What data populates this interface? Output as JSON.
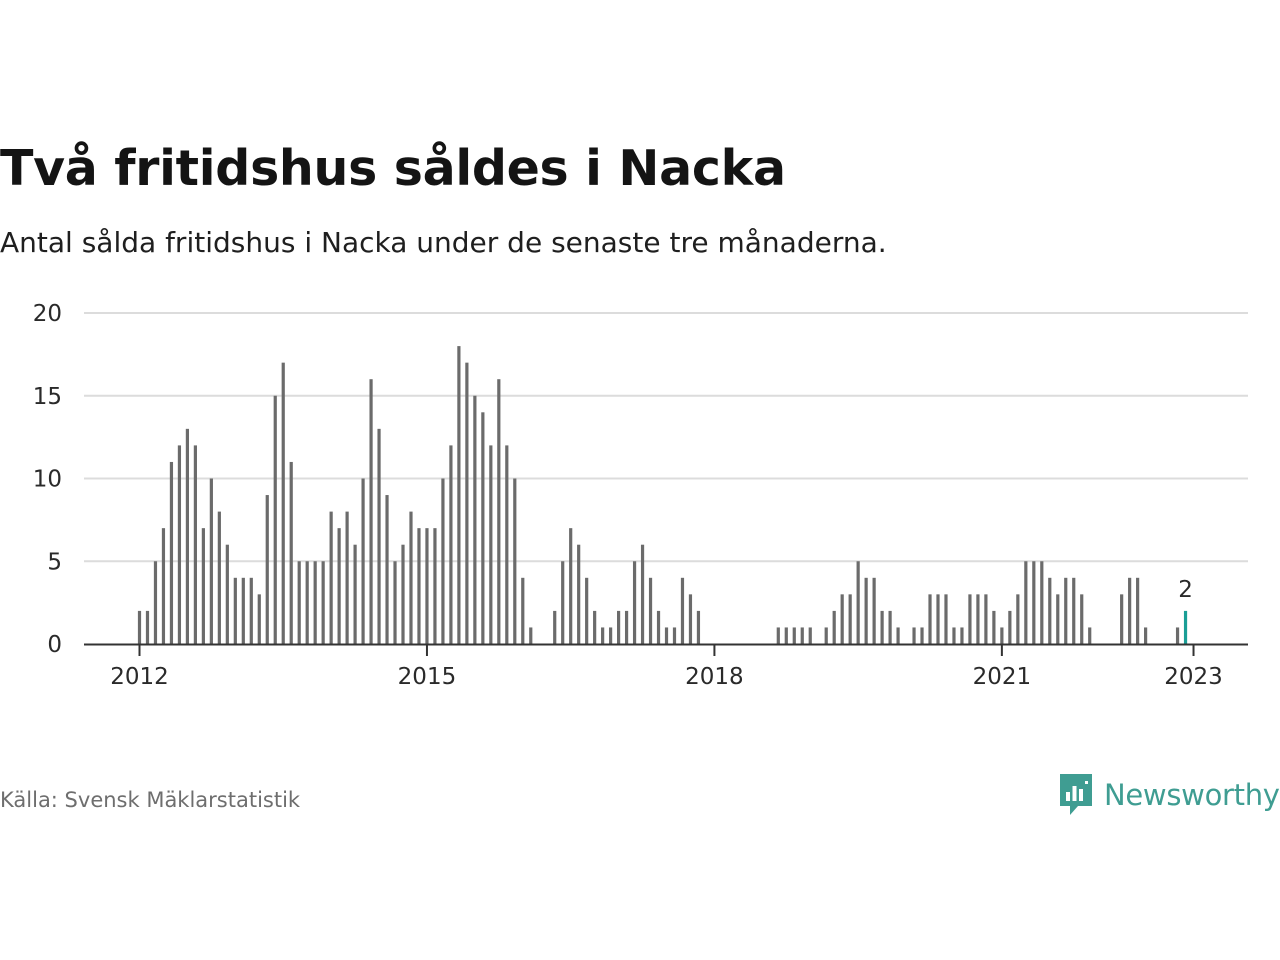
{
  "title": "Två fritidshus såldes i Nacka",
  "subtitle": "Antal sålda fritidshus i Nacka under de senaste tre månaderna.",
  "source": "Källa: Svensk Mäklarstatistik",
  "brand": {
    "name": "Newsworthy",
    "icon": "newsworthy-logo-icon",
    "color": "#3f9d92"
  },
  "colors": {
    "bar": "#6b6b6b",
    "highlight": "#1a9e96",
    "grid": "#dcdcdc",
    "axis": "#333333"
  },
  "chart_data": {
    "type": "bar",
    "title": "Två fritidshus såldes i Nacka",
    "x_start": "2012-01",
    "x_interval": "month",
    "ylim": [
      0,
      20
    ],
    "y_ticks": [
      "0",
      "5",
      "10",
      "15",
      "20"
    ],
    "x_ticks": [
      "2012",
      "2015",
      "2018",
      "2021",
      "2023"
    ],
    "grid": true,
    "highlight_label": "2",
    "values": [
      2,
      2,
      5,
      7,
      11,
      12,
      13,
      12,
      7,
      10,
      8,
      6,
      4,
      4,
      4,
      3,
      9,
      15,
      17,
      11,
      5,
      5,
      5,
      5,
      8,
      7,
      8,
      6,
      10,
      16,
      13,
      9,
      5,
      6,
      8,
      7,
      7,
      7,
      10,
      12,
      18,
      17,
      15,
      14,
      12,
      16,
      12,
      10,
      4,
      1,
      0,
      0,
      2,
      5,
      7,
      6,
      4,
      2,
      1,
      1,
      2,
      2,
      5,
      6,
      4,
      2,
      1,
      1,
      4,
      3,
      2,
      0,
      0,
      0,
      0,
      0,
      0,
      0,
      0,
      0,
      1,
      1,
      1,
      1,
      1,
      0,
      1,
      2,
      3,
      3,
      5,
      4,
      4,
      2,
      2,
      1,
      0,
      1,
      1,
      3,
      3,
      3,
      1,
      1,
      3,
      3,
      3,
      2,
      1,
      2,
      3,
      5,
      5,
      5,
      4,
      3,
      4,
      4,
      3,
      1,
      0,
      0,
      0,
      3,
      4,
      4,
      1,
      0,
      0,
      0,
      1,
      2
    ]
  }
}
